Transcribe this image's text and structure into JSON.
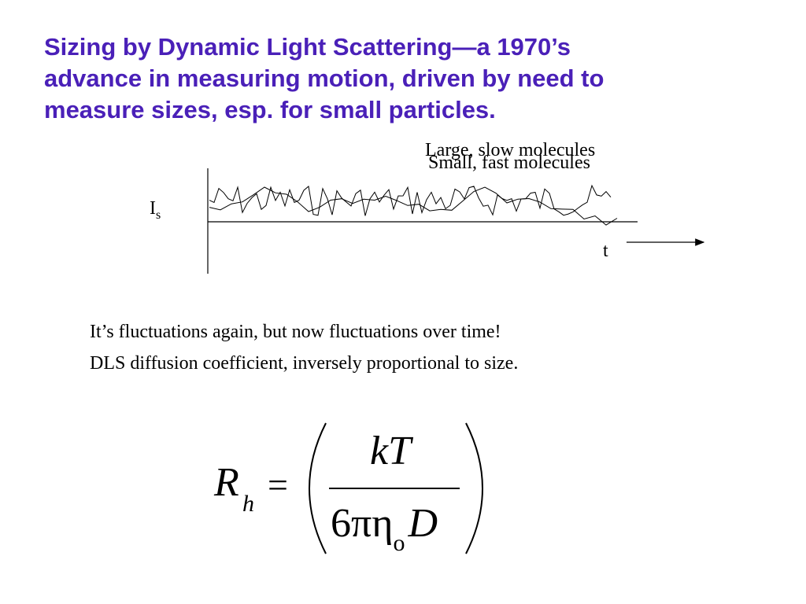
{
  "title": {
    "line1": "Sizing by Dynamic Light Scattering—a 1970’s",
    "line2": "advance in measuring motion, driven  by need to",
    "line3": "measure sizes, esp. for small particles."
  },
  "diagram": {
    "label_large": "Large, slow molecules",
    "label_small": "Small, fast molecules",
    "y_label_main": "I",
    "y_label_sub": "s",
    "x_label": "t"
  },
  "body": {
    "line1": "It’s fluctuations again, but now fluctuations over time!",
    "line2": "DLS diffusion coefficient, inversely proportional to size."
  },
  "formula": {
    "lhs_main": "R",
    "lhs_sub": "h",
    "equals": "=",
    "numerator": "kT",
    "denom_prefix": "6πη",
    "denom_sub": "o",
    "denom_var": "D"
  }
}
